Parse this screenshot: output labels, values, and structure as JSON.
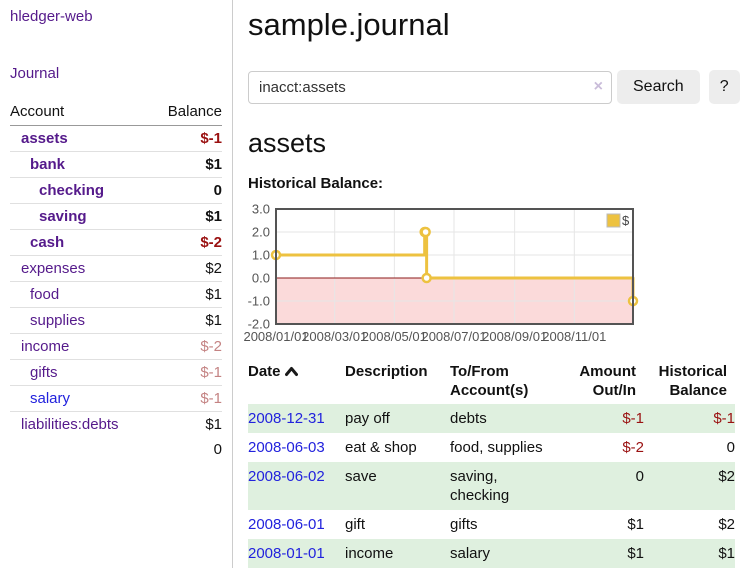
{
  "app": {
    "brand": "hledger-web",
    "nav_journal": "Journal"
  },
  "sidebar": {
    "columns": {
      "account": "Account",
      "balance": "Balance"
    },
    "accounts": [
      {
        "name": "assets",
        "balance": "$-1",
        "indent": 0,
        "bold": true,
        "balance_class": "neg-strong"
      },
      {
        "name": "bank",
        "balance": "$1",
        "indent": 1,
        "bold": true,
        "balance_class": ""
      },
      {
        "name": "checking",
        "balance": "0",
        "indent": 2,
        "bold": true,
        "balance_class": ""
      },
      {
        "name": "saving",
        "balance": "$1",
        "indent": 2,
        "bold": true,
        "balance_class": ""
      },
      {
        "name": "cash",
        "balance": "$-2",
        "indent": 1,
        "bold": true,
        "balance_class": "neg-strong"
      },
      {
        "name": "expenses",
        "balance": "$2",
        "indent": 0,
        "bold": false,
        "balance_class": ""
      },
      {
        "name": "food",
        "balance": "$1",
        "indent": 1,
        "bold": false,
        "balance_class": ""
      },
      {
        "name": "supplies",
        "balance": "$1",
        "indent": 1,
        "bold": false,
        "balance_class": ""
      },
      {
        "name": "income",
        "balance": "$-2",
        "indent": 0,
        "bold": false,
        "balance_class": "neg-soft"
      },
      {
        "name": "gifts",
        "balance": "$-1",
        "indent": 1,
        "bold": false,
        "balance_class": "neg-soft"
      },
      {
        "name": "salary",
        "balance": "$-1",
        "indent": 1,
        "bold": false,
        "balance_class": "neg-soft",
        "name_class": "blue"
      },
      {
        "name": "liabilities:debts",
        "balance": "$1",
        "indent": 0,
        "bold": false,
        "balance_class": ""
      }
    ],
    "total": "0"
  },
  "header": {
    "title": "sample.journal"
  },
  "search": {
    "value": "inacct:assets",
    "clear_icon": "×",
    "button": "Search",
    "help_button": "?"
  },
  "account_page": {
    "title": "assets",
    "chart_label": "Historical Balance:"
  },
  "chart_data": {
    "type": "line",
    "title": "Historical Balance",
    "step": true,
    "series": [
      {
        "name": "$",
        "color": "#edc240",
        "points": [
          [
            "2008/01/01",
            1
          ],
          [
            "2008/06/01",
            2
          ],
          [
            "2008/06/02",
            2
          ],
          [
            "2008/06/03",
            0
          ],
          [
            "2008/12/31",
            -1
          ]
        ]
      }
    ],
    "xlim": [
      "2008/01/01",
      "2008/12/31"
    ],
    "ylim": [
      -2,
      3
    ],
    "yticks": [
      3.0,
      2.0,
      1.0,
      0.0,
      -1.0,
      -2.0
    ],
    "xticks": [
      "2008/01/01",
      "2008/03/01",
      "2008/05/01",
      "2008/07/01",
      "2008/09/01",
      "2008/11/01"
    ],
    "legend": "$",
    "legend_position": "top-right",
    "grid": true,
    "grid_color": "#e6e6e6",
    "border_color": "#545454",
    "zero_line_color": "#8b1a1a",
    "negative_fill": "#fbdada"
  },
  "register": {
    "columns": {
      "date": "Date",
      "description": "Description",
      "account": "To/From Account(s)",
      "amount": "Amount Out/In",
      "balance": "Historical Balance"
    },
    "rows": [
      {
        "date": "2008-12-31",
        "description": "pay off",
        "accounts": "debts",
        "amount": "$-1",
        "balance": "$-1",
        "amount_class": "neg",
        "balance_class": "neg"
      },
      {
        "date": "2008-06-03",
        "description": "eat & shop",
        "accounts": "food, supplies",
        "amount": "$-2",
        "balance": "0",
        "amount_class": "neg",
        "balance_class": ""
      },
      {
        "date": "2008-06-02",
        "description": "save",
        "accounts": "saving, checking",
        "amount": "0",
        "balance": "$2",
        "amount_class": "",
        "balance_class": ""
      },
      {
        "date": "2008-06-01",
        "description": "gift",
        "accounts": "gifts",
        "amount": "$1",
        "balance": "$2",
        "amount_class": "",
        "balance_class": ""
      },
      {
        "date": "2008-01-01",
        "description": "income",
        "accounts": "salary",
        "amount": "$1",
        "balance": "$1",
        "amount_class": "",
        "balance_class": ""
      }
    ]
  }
}
